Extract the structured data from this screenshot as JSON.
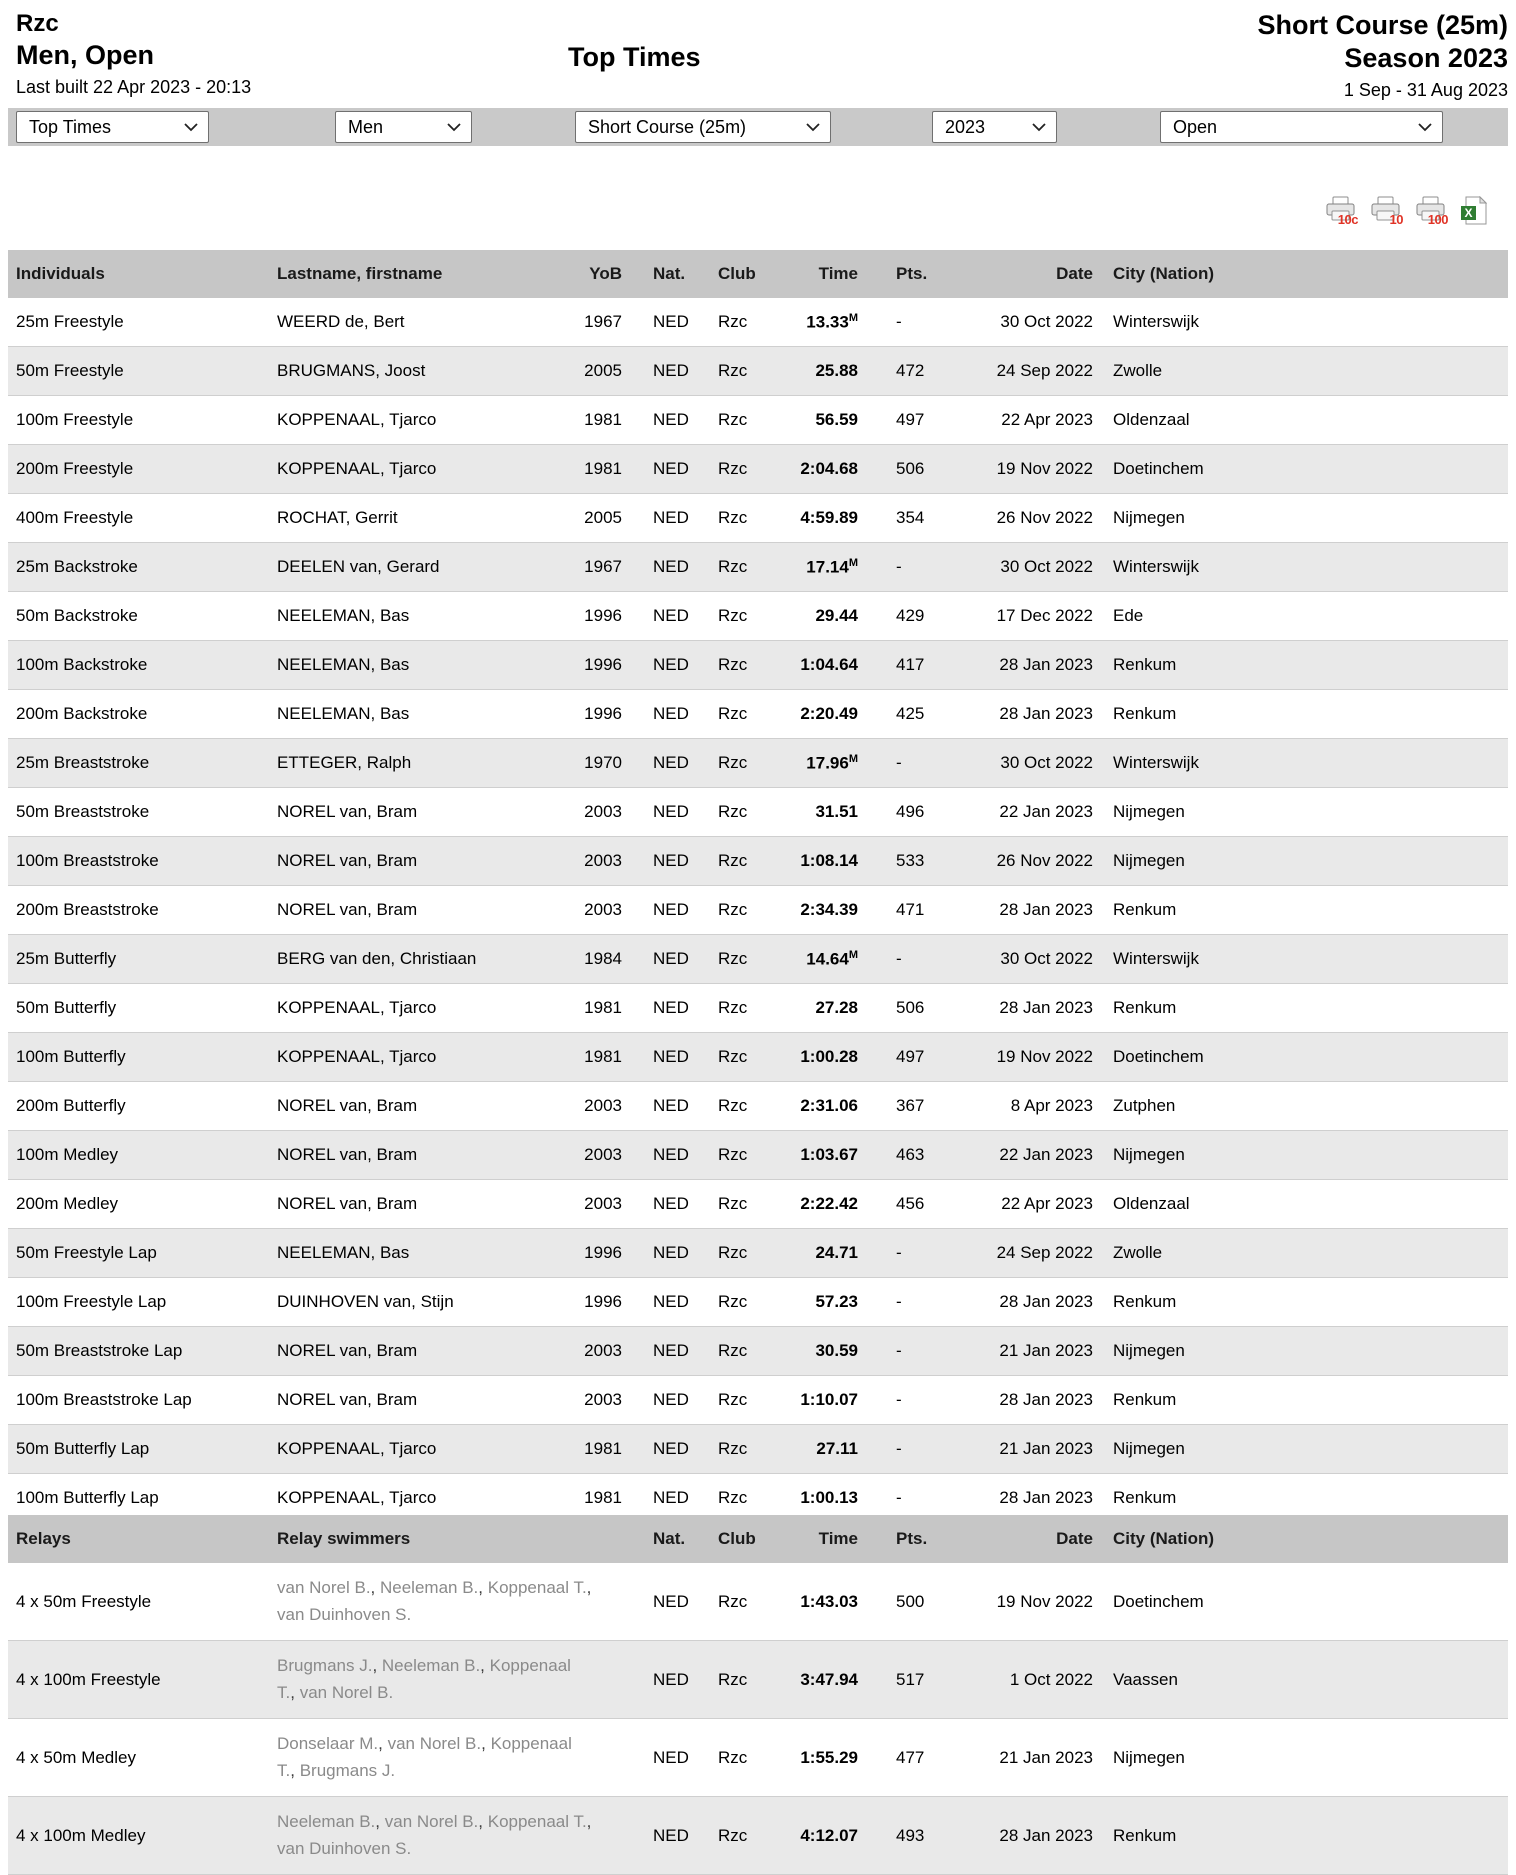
{
  "header": {
    "club": "Rzc",
    "group": "Men, Open",
    "last_built": "Last built 22 Apr 2023 - 20:13",
    "title": "Top Times",
    "course": "Short Course (25m)",
    "season": "Season 2023",
    "season_range": "1 Sep - 31 Aug 2023"
  },
  "filters": [
    {
      "name": "report",
      "value": "Top Times"
    },
    {
      "name": "gender",
      "value": "Men"
    },
    {
      "name": "course",
      "value": "Short Course (25m)"
    },
    {
      "name": "year",
      "value": "2023"
    },
    {
      "name": "agegroup",
      "value": "Open"
    }
  ],
  "toolbar": {
    "print_10c_label": "10c",
    "print_10_label": "10",
    "print_100_label": "100",
    "excel_label": "X"
  },
  "individuals": {
    "headers": [
      "Individuals",
      "Lastname, firstname",
      "YoB",
      "Nat.",
      "Club",
      "Time",
      "Pts.",
      "Date",
      "City (Nation)"
    ],
    "rows": [
      {
        "event": "25m Freestyle",
        "name": "WEERD de, Bert",
        "yob": "1967",
        "nat": "NED",
        "club": "Rzc",
        "time": "13.33",
        "time_sup": "M",
        "pts": "-",
        "date": "30 Oct 2022",
        "city": "Winterswijk"
      },
      {
        "event": "50m Freestyle",
        "name": "BRUGMANS, Joost",
        "yob": "2005",
        "nat": "NED",
        "club": "Rzc",
        "time": "25.88",
        "time_sup": "",
        "pts": "472",
        "date": "24 Sep 2022",
        "city": "Zwolle"
      },
      {
        "event": "100m Freestyle",
        "name": "KOPPENAAL, Tjarco",
        "yob": "1981",
        "nat": "NED",
        "club": "Rzc",
        "time": "56.59",
        "time_sup": "",
        "pts": "497",
        "date": "22 Apr 2023",
        "city": "Oldenzaal"
      },
      {
        "event": "200m Freestyle",
        "name": "KOPPENAAL, Tjarco",
        "yob": "1981",
        "nat": "NED",
        "club": "Rzc",
        "time": "2:04.68",
        "time_sup": "",
        "pts": "506",
        "date": "19 Nov 2022",
        "city": "Doetinchem"
      },
      {
        "event": "400m Freestyle",
        "name": "ROCHAT, Gerrit",
        "yob": "2005",
        "nat": "NED",
        "club": "Rzc",
        "time": "4:59.89",
        "time_sup": "",
        "pts": "354",
        "date": "26 Nov 2022",
        "city": "Nijmegen"
      },
      {
        "event": "25m Backstroke",
        "name": "DEELEN van, Gerard",
        "yob": "1967",
        "nat": "NED",
        "club": "Rzc",
        "time": "17.14",
        "time_sup": "M",
        "pts": "-",
        "date": "30 Oct 2022",
        "city": "Winterswijk"
      },
      {
        "event": "50m Backstroke",
        "name": "NEELEMAN, Bas",
        "yob": "1996",
        "nat": "NED",
        "club": "Rzc",
        "time": "29.44",
        "time_sup": "",
        "pts": "429",
        "date": "17 Dec 2022",
        "city": "Ede"
      },
      {
        "event": "100m Backstroke",
        "name": "NEELEMAN, Bas",
        "yob": "1996",
        "nat": "NED",
        "club": "Rzc",
        "time": "1:04.64",
        "time_sup": "",
        "pts": "417",
        "date": "28 Jan 2023",
        "city": "Renkum"
      },
      {
        "event": "200m Backstroke",
        "name": "NEELEMAN, Bas",
        "yob": "1996",
        "nat": "NED",
        "club": "Rzc",
        "time": "2:20.49",
        "time_sup": "",
        "pts": "425",
        "date": "28 Jan 2023",
        "city": "Renkum"
      },
      {
        "event": "25m Breaststroke",
        "name": "ETTEGER, Ralph",
        "yob": "1970",
        "nat": "NED",
        "club": "Rzc",
        "time": "17.96",
        "time_sup": "M",
        "pts": "-",
        "date": "30 Oct 2022",
        "city": "Winterswijk"
      },
      {
        "event": "50m Breaststroke",
        "name": "NOREL van, Bram",
        "yob": "2003",
        "nat": "NED",
        "club": "Rzc",
        "time": "31.51",
        "time_sup": "",
        "pts": "496",
        "date": "22 Jan 2023",
        "city": "Nijmegen"
      },
      {
        "event": "100m Breaststroke",
        "name": "NOREL van, Bram",
        "yob": "2003",
        "nat": "NED",
        "club": "Rzc",
        "time": "1:08.14",
        "time_sup": "",
        "pts": "533",
        "date": "26 Nov 2022",
        "city": "Nijmegen"
      },
      {
        "event": "200m Breaststroke",
        "name": "NOREL van, Bram",
        "yob": "2003",
        "nat": "NED",
        "club": "Rzc",
        "time": "2:34.39",
        "time_sup": "",
        "pts": "471",
        "date": "28 Jan 2023",
        "city": "Renkum"
      },
      {
        "event": "25m Butterfly",
        "name": "BERG van den, Christiaan",
        "yob": "1984",
        "nat": "NED",
        "club": "Rzc",
        "time": "14.64",
        "time_sup": "M",
        "pts": "-",
        "date": "30 Oct 2022",
        "city": "Winterswijk"
      },
      {
        "event": "50m Butterfly",
        "name": "KOPPENAAL, Tjarco",
        "yob": "1981",
        "nat": "NED",
        "club": "Rzc",
        "time": "27.28",
        "time_sup": "",
        "pts": "506",
        "date": "28 Jan 2023",
        "city": "Renkum"
      },
      {
        "event": "100m Butterfly",
        "name": "KOPPENAAL, Tjarco",
        "yob": "1981",
        "nat": "NED",
        "club": "Rzc",
        "time": "1:00.28",
        "time_sup": "",
        "pts": "497",
        "date": "19 Nov 2022",
        "city": "Doetinchem"
      },
      {
        "event": "200m Butterfly",
        "name": "NOREL van, Bram",
        "yob": "2003",
        "nat": "NED",
        "club": "Rzc",
        "time": "2:31.06",
        "time_sup": "",
        "pts": "367",
        "date": "8 Apr 2023",
        "city": "Zutphen"
      },
      {
        "event": "100m Medley",
        "name": "NOREL van, Bram",
        "yob": "2003",
        "nat": "NED",
        "club": "Rzc",
        "time": "1:03.67",
        "time_sup": "",
        "pts": "463",
        "date": "22 Jan 2023",
        "city": "Nijmegen"
      },
      {
        "event": "200m Medley",
        "name": "NOREL van, Bram",
        "yob": "2003",
        "nat": "NED",
        "club": "Rzc",
        "time": "2:22.42",
        "time_sup": "",
        "pts": "456",
        "date": "22 Apr 2023",
        "city": "Oldenzaal"
      },
      {
        "event": "50m Freestyle Lap",
        "name": "NEELEMAN, Bas",
        "yob": "1996",
        "nat": "NED",
        "club": "Rzc",
        "time": "24.71",
        "time_sup": "",
        "pts": "-",
        "date": "24 Sep 2022",
        "city": "Zwolle"
      },
      {
        "event": "100m Freestyle Lap",
        "name": "DUINHOVEN van, Stijn",
        "yob": "1996",
        "nat": "NED",
        "club": "Rzc",
        "time": "57.23",
        "time_sup": "",
        "pts": "-",
        "date": "28 Jan 2023",
        "city": "Renkum"
      },
      {
        "event": "50m Breaststroke Lap",
        "name": "NOREL van, Bram",
        "yob": "2003",
        "nat": "NED",
        "club": "Rzc",
        "time": "30.59",
        "time_sup": "",
        "pts": "-",
        "date": "21 Jan 2023",
        "city": "Nijmegen"
      },
      {
        "event": "100m Breaststroke Lap",
        "name": "NOREL van, Bram",
        "yob": "2003",
        "nat": "NED",
        "club": "Rzc",
        "time": "1:10.07",
        "time_sup": "",
        "pts": "-",
        "date": "28 Jan 2023",
        "city": "Renkum"
      },
      {
        "event": "50m Butterfly Lap",
        "name": "KOPPENAAL, Tjarco",
        "yob": "1981",
        "nat": "NED",
        "club": "Rzc",
        "time": "27.11",
        "time_sup": "",
        "pts": "-",
        "date": "21 Jan 2023",
        "city": "Nijmegen"
      },
      {
        "event": "100m Butterfly Lap",
        "name": "KOPPENAAL, Tjarco",
        "yob": "1981",
        "nat": "NED",
        "club": "Rzc",
        "time": "1:00.13",
        "time_sup": "",
        "pts": "-",
        "date": "28 Jan 2023",
        "city": "Renkum"
      }
    ]
  },
  "relays": {
    "headers": [
      "Relays",
      "Relay swimmers",
      "Nat.",
      "Club",
      "Time",
      "Pts.",
      "Date",
      "City (Nation)"
    ],
    "rows": [
      {
        "event": "4 x 50m Freestyle",
        "swimmers": [
          "van Norel B.",
          "Neeleman B.",
          "Koppenaal T.",
          "van Duinhoven S."
        ],
        "nat": "NED",
        "club": "Rzc",
        "time": "1:43.03",
        "pts": "500",
        "date": "19 Nov 2022",
        "city": "Doetinchem"
      },
      {
        "event": "4 x 100m Freestyle",
        "swimmers": [
          "Brugmans J.",
          "Neeleman B.",
          "Koppenaal T.",
          "van Norel B."
        ],
        "nat": "NED",
        "club": "Rzc",
        "time": "3:47.94",
        "pts": "517",
        "date": "1 Oct 2022",
        "city": "Vaassen"
      },
      {
        "event": "4 x 50m Medley",
        "swimmers": [
          "Donselaar M.",
          "van Norel B.",
          "Koppenaal T.",
          "Brugmans J."
        ],
        "nat": "NED",
        "club": "Rzc",
        "time": "1:55.29",
        "pts": "477",
        "date": "21 Jan 2023",
        "city": "Nijmegen"
      },
      {
        "event": "4 x 100m Medley",
        "swimmers": [
          "Neeleman B.",
          "van Norel B.",
          "Koppenaal T.",
          "van Duinhoven S."
        ],
        "nat": "NED",
        "club": "Rzc",
        "time": "4:12.07",
        "pts": "493",
        "date": "28 Jan 2023",
        "city": "Renkum"
      }
    ]
  }
}
